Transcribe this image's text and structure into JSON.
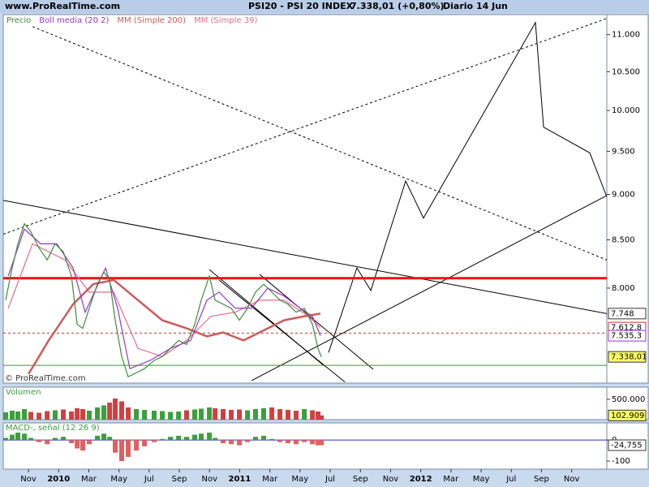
{
  "chart_data": [
    {
      "type": "line",
      "source": "www.ProRealTime.com",
      "title": "PSI20 - PSI 20 INDEX",
      "last": "7.338,01 (+0,80%)",
      "period": "Diario",
      "date": "14 Jun",
      "watermark": "© ProRealTime.com",
      "log": true,
      "xlim": [
        -1.67,
        38.33
      ],
      "ylim": [
        7100,
        11280
      ],
      "yticks": [
        {
          "value": 8000,
          "label": "8.000"
        },
        {
          "value": 8500,
          "label": "8.500"
        },
        {
          "value": 9000,
          "label": "9.000"
        },
        {
          "value": 9500,
          "label": "9.500"
        },
        {
          "value": 10000,
          "label": "10.000"
        },
        {
          "value": 10500,
          "label": "10.500"
        },
        {
          "value": 11000,
          "label": "11.000"
        }
      ],
      "series": [
        {
          "name": "Precio",
          "color": "#3c8c3c",
          "x": [
            -1.51,
            -1.08,
            -0.7,
            -0.27,
            0.16,
            0.7,
            1.24,
            1.77,
            2.31,
            2.85,
            3.23,
            3.6,
            4.03,
            4.57,
            5.0,
            5.38,
            5.75,
            6.18,
            6.61,
            7.15,
            7.69,
            8.33,
            8.87,
            9.41,
            9.95,
            10.48,
            11.02,
            11.45,
            11.99,
            12.37,
            12.9,
            13.44,
            13.98,
            14.52,
            15.05,
            15.59,
            16.13,
            16.67,
            17.2,
            17.74,
            18.28,
            18.82,
            19.19,
            19.41
          ],
          "values": [
            7880,
            8205,
            8458,
            8674,
            8586,
            8415,
            8288,
            8458,
            8373,
            8122,
            7644,
            7606,
            7800,
            8040,
            8163,
            8082,
            7683,
            7341,
            7157,
            7193,
            7230,
            7305,
            7341,
            7416,
            7491,
            7453,
            7644,
            7880,
            8122,
            7880,
            7840,
            7800,
            7683,
            7800,
            7960,
            8040,
            7960,
            7880,
            7840,
            7761,
            7800,
            7644,
            7416,
            7338.01
          ]
        },
        {
          "name": "Boll media (20 2)",
          "color": "#9a35c8",
          "x": [
            -1.34,
            -0.27,
            0.81,
            1.88,
            2.96,
            3.76,
            5.11,
            5.91,
            6.72,
            8.06,
            9.41,
            10.75,
            11.83,
            12.63,
            13.71,
            14.78,
            15.86,
            16.94,
            18.01,
            18.82,
            19.35
          ],
          "values": [
            8122,
            8616,
            8458,
            8458,
            8205,
            7761,
            8205,
            7800,
            7230,
            7305,
            7416,
            7491,
            7880,
            7960,
            7800,
            7800,
            8000,
            7920,
            7800,
            7722,
            7535.3
          ]
        },
        {
          "name": "MM (Simple 200)",
          "color": "#d05a5a",
          "x": [
            0,
            1.34,
            2.96,
            4.3,
            5.65,
            7.26,
            8.87,
            10.48,
            11.83,
            12.9,
            14.25,
            15.32,
            16.94,
            18.28,
            19.35
          ],
          "values": [
            7180,
            7491,
            7840,
            8040,
            8082,
            7880,
            7683,
            7606,
            7529,
            7567,
            7491,
            7567,
            7683,
            7722,
            7748
          ]
        },
        {
          "name": "MM (Simple 39)",
          "color": "#e56d8a",
          "x": [
            -1.34,
            0.27,
            2.42,
            4.03,
            5.65,
            7.26,
            8.87,
            10.48,
            12.1,
            13.71,
            15.32,
            16.94,
            18.55,
            19.35
          ],
          "values": [
            7800,
            8458,
            8288,
            7960,
            7960,
            7416,
            7341,
            7491,
            7722,
            7761,
            7880,
            7880,
            7722,
            7612.8
          ]
        }
      ],
      "lines": [
        {
          "x": [
            -1.67,
            38.33
          ],
          "y": [
            8932,
            7748
          ],
          "color": "#000000",
          "style": "solid"
        },
        {
          "x": [
            -1.67,
            38.33
          ],
          "y": [
            8561,
            11226
          ],
          "color": "#000000",
          "style": "dotted"
        },
        {
          "x": [
            0.27,
            38.33
          ],
          "y": [
            11111,
            8288
          ],
          "color": "#000000",
          "style": "dotted"
        },
        {
          "x": [
            14.78,
            38.33
          ],
          "y": [
            7122,
            8986
          ],
          "color": "#000000",
          "style": "solid"
        },
        {
          "x": [
            19.89,
            21.77,
            22.69,
            25.0,
            26.18,
            33.6,
            34.14,
            37.2,
            38.33
          ],
          "y": [
            7378,
            8205,
            7976,
            9152,
            8736,
            11168,
            9793,
            9482,
            8971
          ],
          "color": "#000000",
          "style": "solid"
        },
        {
          "x": [
            11.99,
            19.62
          ],
          "y": [
            8188,
            7253
          ],
          "color": "#000000",
          "style": "solid"
        },
        {
          "x": [
            15.32,
            22.85
          ],
          "y": [
            8139,
            7224
          ],
          "color": "#000000",
          "style": "solid"
        },
        {
          "x": [
            12.63,
            20.97
          ],
          "y": [
            8082,
            7110
          ],
          "color": "#000000",
          "style": "solid"
        }
      ],
      "hlines": [
        {
          "value": 8100,
          "color": "#ee1111",
          "style": "thick"
        },
        {
          "value": 7560,
          "color": "#d03030",
          "style": "dotted"
        },
        {
          "value": 7260,
          "color": "#2aa02a",
          "style": "solid"
        }
      ],
      "price_labels": [
        {
          "value": 7748,
          "label": "7.748",
          "bg": "#ffffff",
          "border": "#333333"
        },
        {
          "value": 7612.8,
          "label": "7.612,8",
          "bg": "#ffffff",
          "border": "#d03030"
        },
        {
          "value": 7535.3,
          "label": "7.535,3",
          "bg": "#ffffff",
          "border": "#9a35c8"
        },
        {
          "value": 7338.01,
          "label": "7.338,01",
          "bg": "#ffff66",
          "border": "#333333"
        }
      ]
    },
    {
      "type": "bar",
      "title": "Volumen",
      "xlim": [
        -1.67,
        38.33
      ],
      "ylim": [
        0,
        800000
      ],
      "up": "#3aa03a",
      "down": "#d04040",
      "yticks": [
        {
          "value": 500000,
          "label": "500.000"
        }
      ],
      "x": [
        -1.51,
        -1.08,
        -0.7,
        -0.27,
        0.16,
        0.7,
        1.24,
        1.77,
        2.31,
        2.85,
        3.23,
        3.6,
        4.03,
        4.57,
        5.0,
        5.38,
        5.75,
        6.18,
        6.61,
        7.15,
        7.69,
        8.33,
        8.87,
        9.41,
        9.95,
        10.48,
        11.02,
        11.45,
        11.99,
        12.37,
        12.9,
        13.44,
        13.98,
        14.52,
        15.05,
        15.59,
        16.13,
        16.67,
        17.2,
        17.74,
        18.28,
        18.82,
        19.19,
        19.41
      ],
      "values": [
        180000,
        220000,
        200000,
        260000,
        190000,
        170000,
        210000,
        230000,
        250000,
        200000,
        280000,
        260000,
        220000,
        300000,
        350000,
        420000,
        520000,
        450000,
        300000,
        260000,
        240000,
        220000,
        210000,
        190000,
        200000,
        230000,
        250000,
        270000,
        300000,
        280000,
        260000,
        240000,
        250000,
        230000,
        260000,
        280000,
        300000,
        260000,
        240000,
        220000,
        260000,
        230000,
        200000,
        102909
      ],
      "value_labels": [
        null,
        null,
        null,
        null,
        null,
        null,
        null,
        null,
        null,
        null,
        null,
        null,
        null,
        null,
        null,
        null,
        null,
        null,
        null,
        null,
        null,
        null,
        null,
        null,
        null,
        null,
        null,
        null,
        null,
        null,
        null,
        null,
        null,
        null,
        null,
        null,
        null,
        null,
        null,
        null,
        null,
        null,
        null,
        "102.909"
      ]
    },
    {
      "type": "bar",
      "title": "MACD-, señal (12 26 9)",
      "xlim": [
        -1.67,
        38.33
      ],
      "ylim": [
        -138,
        81
      ],
      "up": "#3aa03a",
      "down": "#e06060",
      "baseline": "#3030c0",
      "yticks": [
        0,
        -100
      ],
      "x": [
        -1.51,
        -1.08,
        -0.7,
        -0.27,
        0.16,
        0.7,
        1.24,
        1.77,
        2.31,
        2.85,
        3.23,
        3.6,
        4.03,
        4.57,
        5.0,
        5.38,
        5.75,
        6.18,
        6.61,
        7.15,
        7.69,
        8.33,
        8.87,
        9.41,
        9.95,
        10.48,
        11.02,
        11.45,
        11.99,
        12.37,
        12.9,
        13.44,
        13.98,
        14.52,
        15.05,
        15.59,
        16.13,
        16.67,
        17.2,
        17.74,
        18.28,
        18.82,
        19.19,
        19.41
      ],
      "values": [
        10,
        25,
        35,
        30,
        10,
        -10,
        -20,
        10,
        15,
        -15,
        -40,
        -50,
        -20,
        20,
        30,
        15,
        -60,
        -100,
        -80,
        -50,
        -30,
        -10,
        5,
        15,
        20,
        15,
        25,
        30,
        35,
        10,
        -15,
        -20,
        -25,
        -10,
        15,
        20,
        5,
        -10,
        -15,
        -20,
        -10,
        -20,
        -25,
        -24.755
      ],
      "value_labels": [
        null,
        null,
        null,
        null,
        null,
        null,
        null,
        null,
        null,
        null,
        null,
        null,
        null,
        null,
        null,
        null,
        null,
        null,
        null,
        null,
        null,
        null,
        null,
        null,
        null,
        null,
        null,
        null,
        null,
        null,
        null,
        null,
        null,
        null,
        null,
        null,
        null,
        null,
        null,
        null,
        null,
        null,
        null,
        "-24,755"
      ],
      "xticks": [
        {
          "value": 0,
          "label": "Nov"
        },
        {
          "value": 2,
          "label": "2010"
        },
        {
          "value": 4,
          "label": "Mar"
        },
        {
          "value": 6,
          "label": "May"
        },
        {
          "value": 8,
          "label": "Jul"
        },
        {
          "value": 10,
          "label": "Sep"
        },
        {
          "value": 12,
          "label": "Nov"
        },
        {
          "value": 14,
          "label": "2011"
        },
        {
          "value": 16,
          "label": "Mar"
        },
        {
          "value": 18,
          "label": "May"
        },
        {
          "value": 20,
          "label": "Jul"
        },
        {
          "value": 22,
          "label": "Sep"
        },
        {
          "value": 24,
          "label": "Nov"
        },
        {
          "value": 26,
          "label": "2012"
        },
        {
          "value": 28,
          "label": "Mar"
        },
        {
          "value": 30,
          "label": "May"
        },
        {
          "value": 32,
          "label": "Jul"
        },
        {
          "value": 34,
          "label": "Sep"
        },
        {
          "value": 36,
          "label": "Nov"
        }
      ]
    }
  ]
}
